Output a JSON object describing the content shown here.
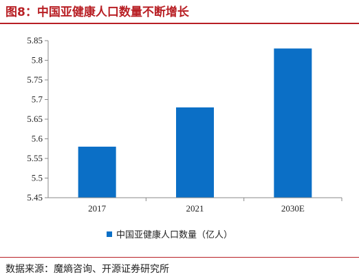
{
  "figure_title": "图8：中国亚健康人口数量不断增长",
  "source_note": "数据来源：魔熵咨询、开源证券研究所",
  "colors": {
    "bar": "#0b6fc6",
    "accent": "#b81f24",
    "axis": "#888888"
  },
  "chart_data": {
    "type": "bar",
    "title": "",
    "xlabel": "",
    "ylabel": "",
    "categories": [
      "2017",
      "2021",
      "2030E"
    ],
    "series": [
      {
        "name": "中国亚健康人口数量（亿人）",
        "values": [
          5.58,
          5.68,
          5.83
        ]
      }
    ],
    "ylim": [
      5.45,
      5.85
    ],
    "yticks": [
      "5.45",
      "5.5",
      "5.55",
      "5.6",
      "5.65",
      "5.7",
      "5.75",
      "5.8",
      "5.85"
    ],
    "grid": false,
    "legend_position": "bottom-center"
  }
}
